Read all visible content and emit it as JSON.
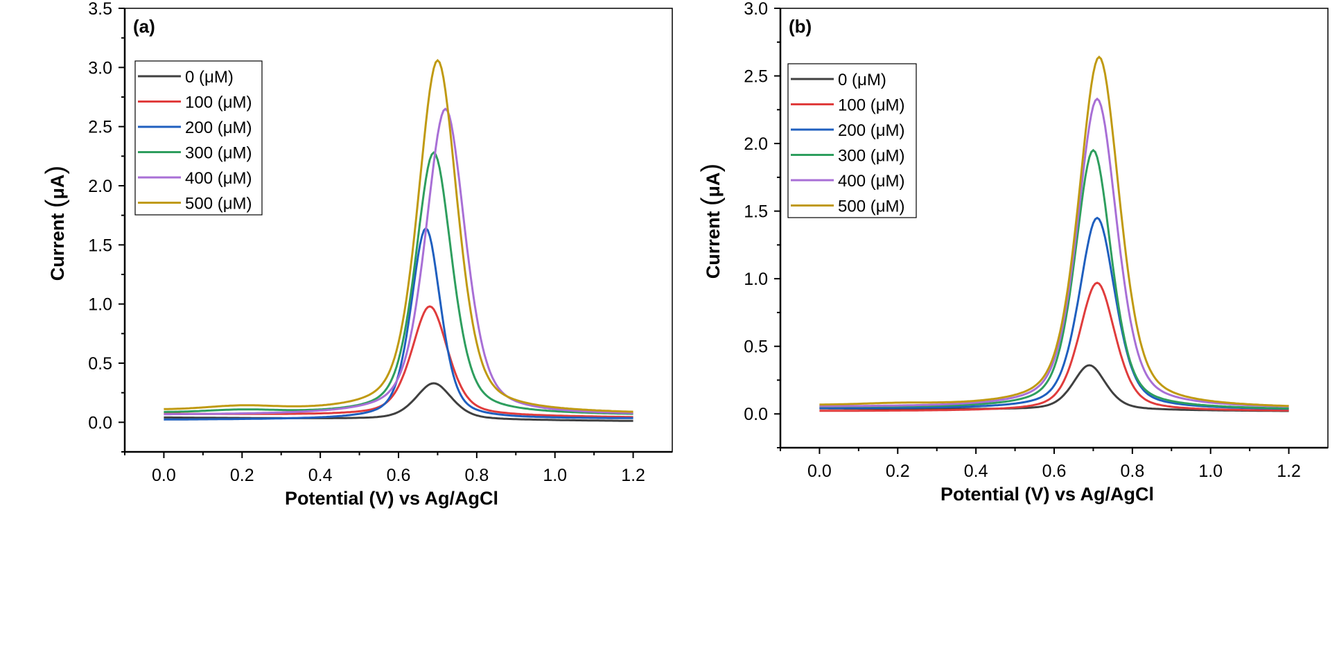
{
  "chart_data": [
    {
      "type": "line",
      "panel_label": "(a)",
      "xlabel": "Potential (V) vs Ag/AgCl",
      "ylabel": "Current",
      "ylabel_unit": "μA",
      "xlim": [
        -0.1,
        1.3
      ],
      "ylim": [
        -0.25,
        3.5
      ],
      "xticks": [
        0.0,
        0.2,
        0.4,
        0.6,
        0.8,
        1.0,
        1.2
      ],
      "xtick_labels": [
        "0.0",
        "0.2",
        "0.4",
        "0.6",
        "0.8",
        "1.0",
        "1.2"
      ],
      "yticks": [
        0.0,
        0.5,
        1.0,
        1.5,
        2.0,
        2.5,
        3.0,
        3.5
      ],
      "ytick_labels": [
        "0.0",
        "0.5",
        "1.0",
        "1.5",
        "2.0",
        "2.5",
        "3.0",
        "3.5"
      ],
      "legend_position": "top-left",
      "series": [
        {
          "name": "0 (μM)",
          "color": "#404040",
          "peak_x": 0.69,
          "peak_y": 0.33,
          "width": 0.055,
          "base_start": 0.04,
          "base_end": 0.01,
          "bump_x": 0.2,
          "bump_y": 0.0
        },
        {
          "name": "100 (μM)",
          "color": "#e03c3c",
          "peak_x": 0.68,
          "peak_y": 0.98,
          "width": 0.055,
          "base_start": 0.07,
          "base_end": 0.04,
          "bump_x": 0.2,
          "bump_y": 0.0
        },
        {
          "name": "200 (μM)",
          "color": "#1f5fbf",
          "peak_x": 0.67,
          "peak_y": 1.64,
          "width": 0.045,
          "base_start": 0.02,
          "base_end": 0.03,
          "bump_x": 0.2,
          "bump_y": 0.0
        },
        {
          "name": "300 (μM)",
          "color": "#2e9e5e",
          "peak_x": 0.69,
          "peak_y": 2.28,
          "width": 0.055,
          "base_start": 0.08,
          "base_end": 0.06,
          "bump_x": 0.2,
          "bump_y": 0.02
        },
        {
          "name": "400 (μM)",
          "color": "#a86fd6",
          "peak_x": 0.72,
          "peak_y": 2.65,
          "width": 0.06,
          "base_start": 0.06,
          "base_end": 0.06,
          "bump_x": 0.2,
          "bump_y": 0.0
        },
        {
          "name": "500 (μM)",
          "color": "#c09a12",
          "peak_x": 0.7,
          "peak_y": 3.06,
          "width": 0.06,
          "base_start": 0.1,
          "base_end": 0.07,
          "bump_x": 0.2,
          "bump_y": 0.03
        }
      ]
    },
    {
      "type": "line",
      "panel_label": "(b)",
      "xlabel": "Potential (V) vs Ag/AgCl",
      "ylabel": "Current",
      "ylabel_unit": "μA",
      "xlim": [
        -0.1,
        1.3
      ],
      "ylim": [
        -0.25,
        3.0
      ],
      "xticks": [
        0.0,
        0.2,
        0.4,
        0.6,
        0.8,
        1.0,
        1.2
      ],
      "xtick_labels": [
        "0.0",
        "0.2",
        "0.4",
        "0.6",
        "0.8",
        "1.0",
        "1.2"
      ],
      "yticks": [
        0.0,
        0.5,
        1.0,
        1.5,
        2.0,
        2.5,
        3.0
      ],
      "ytick_labels": [
        "0.0",
        "0.5",
        "1.0",
        "1.5",
        "2.0",
        "2.5",
        "3.0"
      ],
      "legend_position": "top-left",
      "series": [
        {
          "name": "0 (μM)",
          "color": "#404040",
          "peak_x": 0.69,
          "peak_y": 0.36,
          "width": 0.05,
          "base_start": 0.04,
          "base_end": 0.02,
          "bump_x": 0.2,
          "bump_y": 0.0
        },
        {
          "name": "100 (μM)",
          "color": "#e03c3c",
          "peak_x": 0.71,
          "peak_y": 0.97,
          "width": 0.055,
          "base_start": 0.02,
          "base_end": 0.02,
          "bump_x": 0.2,
          "bump_y": 0.0
        },
        {
          "name": "200 (μM)",
          "color": "#1f5fbf",
          "peak_x": 0.71,
          "peak_y": 1.45,
          "width": 0.055,
          "base_start": 0.04,
          "base_end": 0.03,
          "bump_x": 0.2,
          "bump_y": 0.0
        },
        {
          "name": "300 (μM)",
          "color": "#2e9e5e",
          "peak_x": 0.7,
          "peak_y": 1.95,
          "width": 0.055,
          "base_start": 0.05,
          "base_end": 0.03,
          "bump_x": 0.2,
          "bump_y": 0.0
        },
        {
          "name": "400 (μM)",
          "color": "#a86fd6",
          "peak_x": 0.71,
          "peak_y": 2.33,
          "width": 0.06,
          "base_start": 0.05,
          "base_end": 0.04,
          "bump_x": 0.2,
          "bump_y": 0.0
        },
        {
          "name": "500 (μM)",
          "color": "#c09a12",
          "peak_x": 0.715,
          "peak_y": 2.64,
          "width": 0.062,
          "base_start": 0.06,
          "base_end": 0.04,
          "bump_x": 0.2,
          "bump_y": 0.01
        }
      ]
    }
  ]
}
